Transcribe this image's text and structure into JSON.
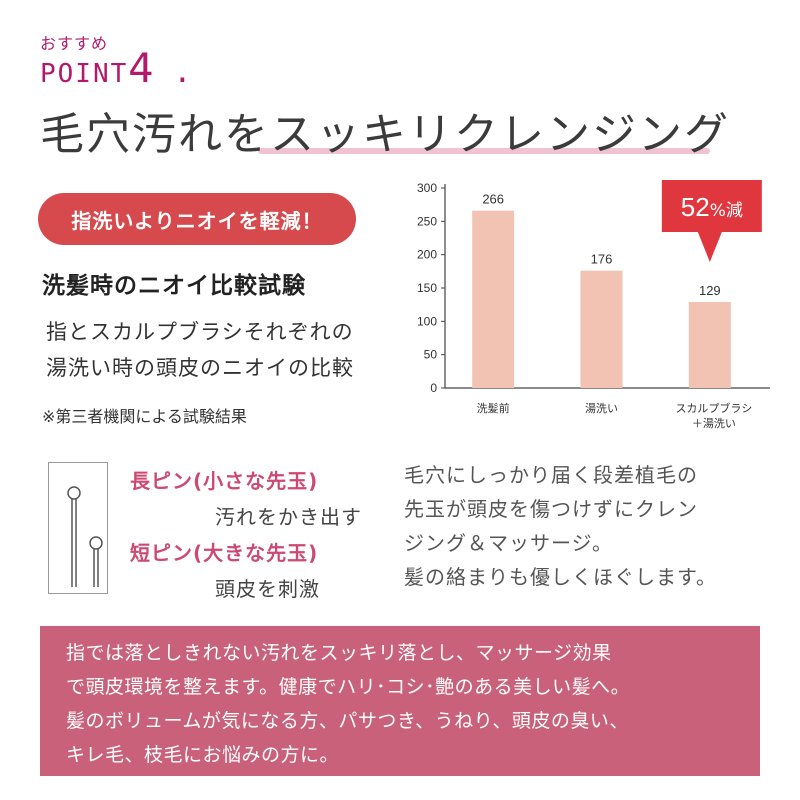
{
  "header": {
    "recommend_label": "おすすめ",
    "point_prefix": "POINT",
    "point_number": "4",
    "point_dot": ".",
    "headline_part1": "毛穴汚れを",
    "headline_part2": "スッキリクレンジング"
  },
  "badge": {
    "label": "指洗いよりニオイを軽減！"
  },
  "test": {
    "title": "洗髪時のニオイ比較試験",
    "desc_line1": "指とスカルプブラシそれぞれの",
    "desc_line2": "湯洗い時の頭皮のニオイの比較",
    "note": "※第三者機関による試験結果"
  },
  "chart_data": {
    "type": "bar",
    "categories": [
      "洗髪前",
      "湯洗い",
      "スカルプブラシ\n＋湯洗い"
    ],
    "category_lines": [
      [
        "洗髪前"
      ],
      [
        "湯洗い"
      ],
      [
        "スカルプブラシ",
        "＋湯洗い"
      ]
    ],
    "values": [
      266,
      176,
      129
    ],
    "yticks": [
      0,
      50,
      100,
      150,
      200,
      250,
      300
    ],
    "ylim": [
      0,
      300
    ],
    "annotation": {
      "text_num": "52",
      "text_unit": "%減",
      "target_index": 2
    },
    "bar_color": "#f2c2b3",
    "annotation_color": "#e0373e"
  },
  "pins": {
    "long_title": "長ピン(小さな先玉)",
    "long_desc": "汚れをかき出す",
    "short_title": "短ピン(大きな先玉)",
    "short_desc": "頭皮を刺激"
  },
  "bristle": {
    "line1": "毛穴にしっかり届く段差植毛の",
    "line2": "先玉が頭皮を傷つけずにクレン",
    "line3": "ジング＆マッサージ。",
    "line4": "髪の絡まりも優しくほぐします。"
  },
  "bottom": {
    "line1": "指では落としきれない汚れをスッキリ落とし、マッサージ効果",
    "line2": "で頭皮環境を整えます。健康でハリ･コシ･艶のある美しい髪へ。",
    "line3": "髪のボリュームが気になる方、パサつき、うねり、頭皮の臭い、",
    "line4": "キレ毛、枝毛にお悩みの方に。"
  },
  "colors": {
    "accent": "#b2186b",
    "badge": "#d64a4d",
    "bottom_box": "#c9617a",
    "pin_title": "#cc4a72"
  }
}
